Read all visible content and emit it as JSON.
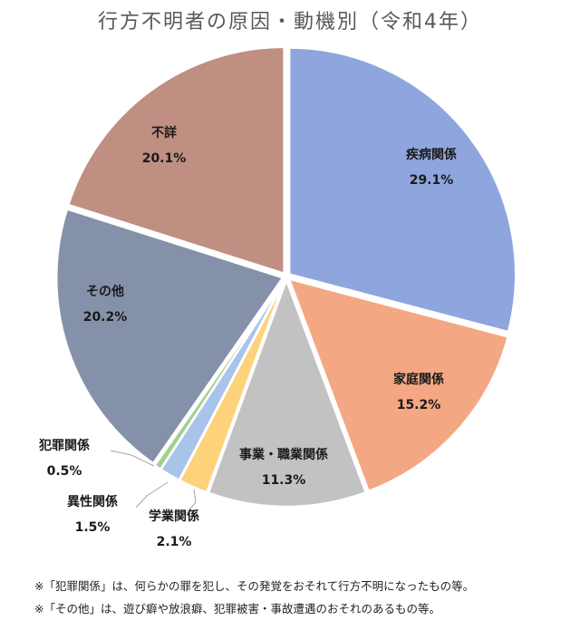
{
  "chart_data": {
    "type": "pie",
    "title": "行方不明者の原因・動機別（令和4年）",
    "slices": [
      {
        "label": "疾病関係",
        "value": 29.1,
        "value_label": "29.1%",
        "color": "#8fa5de"
      },
      {
        "label": "家庭関係",
        "value": 15.2,
        "value_label": "15.2%",
        "color": "#f4a783"
      },
      {
        "label": "事業・職業関係",
        "value": 11.3,
        "value_label": "11.3%",
        "color": "#c2c2c2"
      },
      {
        "label": "学業関係",
        "value": 2.1,
        "value_label": "2.1%",
        "color": "#fdd27a"
      },
      {
        "label": "異性関係",
        "value": 1.5,
        "value_label": "1.5%",
        "color": "#a9c4ea"
      },
      {
        "label": "犯罪関係",
        "value": 0.5,
        "value_label": "0.5%",
        "color": "#a3cf8e"
      },
      {
        "label": "その他",
        "value": 20.2,
        "value_label": "20.2%",
        "color": "#8591a9"
      },
      {
        "label": "不詳",
        "value": 20.1,
        "value_label": "20.1%",
        "color": "#bf8f82"
      }
    ]
  },
  "notes": [
    "※「犯罪関係」は、何らかの罪を犯し、その発覚をおそれて行方不明になったもの等。",
    "※「その他」は、遊び癖や放浪癖、犯罪被害・事故遭遇のおそれのあるもの等。"
  ]
}
